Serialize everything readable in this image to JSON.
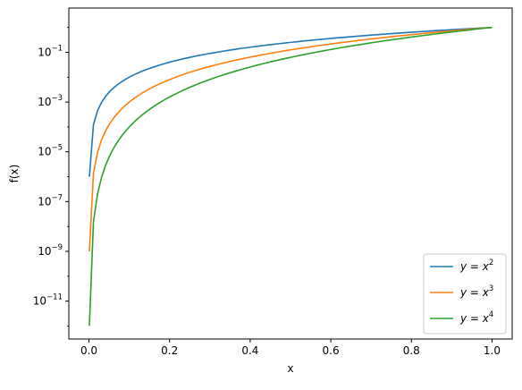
{
  "chart_data": {
    "type": "line",
    "title": "",
    "xlabel": "x",
    "ylabel": "f(x)",
    "xlim": [
      -0.05,
      1.05
    ],
    "ylim": [
      3e-13,
      6
    ],
    "yscale": "log",
    "grid": false,
    "legend_position": "bottom-right",
    "x_ticks": [
      {
        "value": 0.0,
        "label": "0.0"
      },
      {
        "value": 0.2,
        "label": "0.2"
      },
      {
        "value": 0.4,
        "label": "0.4"
      },
      {
        "value": 0.6,
        "label": "0.6"
      },
      {
        "value": 0.8,
        "label": "0.8"
      },
      {
        "value": 1.0,
        "label": "1.0"
      }
    ],
    "y_ticks": [
      {
        "value": 1e-11,
        "base": "10",
        "exp": "−11"
      },
      {
        "value": 1e-09,
        "base": "10",
        "exp": "−9"
      },
      {
        "value": 1e-07,
        "base": "10",
        "exp": "−7"
      },
      {
        "value": 1e-05,
        "base": "10",
        "exp": "−5"
      },
      {
        "value": 0.001,
        "base": "10",
        "exp": "−3"
      },
      {
        "value": 0.1,
        "base": "10",
        "exp": "−1"
      }
    ],
    "x_range": [
      0.001,
      1.0
    ],
    "sample_count": 100,
    "series": [
      {
        "name_base": "y = x",
        "name_exp": "2",
        "power": 2,
        "color": "#1f77b4"
      },
      {
        "name_base": "y = x",
        "name_exp": "3",
        "power": 3,
        "color": "#ff7f0e"
      },
      {
        "name_base": "y = x",
        "name_exp": "4",
        "power": 4,
        "color": "#2ca02c"
      }
    ]
  }
}
